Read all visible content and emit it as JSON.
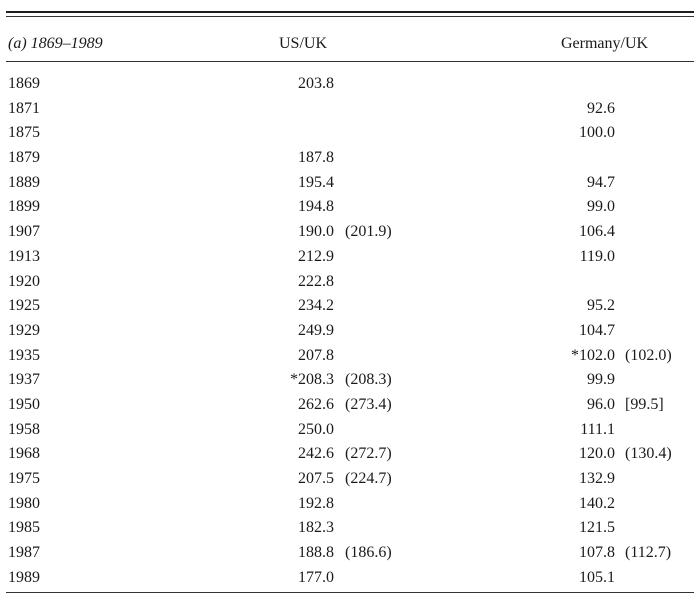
{
  "header": {
    "period": "(a) 1869–1989",
    "col_us": "US/UK",
    "col_de": "Germany/UK"
  },
  "rows": [
    {
      "year": "1869",
      "us": "203.8",
      "us_paren": "",
      "de": "",
      "de_paren": ""
    },
    {
      "year": "1871",
      "us": "",
      "us_paren": "",
      "de": "92.6",
      "de_paren": ""
    },
    {
      "year": "1875",
      "us": "",
      "us_paren": "",
      "de": "100.0",
      "de_paren": ""
    },
    {
      "year": "1879",
      "us": "187.8",
      "us_paren": "",
      "de": "",
      "de_paren": ""
    },
    {
      "year": "1889",
      "us": "195.4",
      "us_paren": "",
      "de": "94.7",
      "de_paren": ""
    },
    {
      "year": "1899",
      "us": "194.8",
      "us_paren": "",
      "de": "99.0",
      "de_paren": ""
    },
    {
      "year": "1907",
      "us": "190.0",
      "us_paren": "(201.9)",
      "de": "106.4",
      "de_paren": ""
    },
    {
      "year": "1913",
      "us": "212.9",
      "us_paren": "",
      "de": "119.0",
      "de_paren": ""
    },
    {
      "year": "1920",
      "us": "222.8",
      "us_paren": "",
      "de": "",
      "de_paren": ""
    },
    {
      "year": "1925",
      "us": "234.2",
      "us_paren": "",
      "de": "95.2",
      "de_paren": ""
    },
    {
      "year": "1929",
      "us": "249.9",
      "us_paren": "",
      "de": "104.7",
      "de_paren": ""
    },
    {
      "year": "1935",
      "us": "207.8",
      "us_paren": "",
      "de": "*102.0",
      "de_paren": "(102.0)"
    },
    {
      "year": "1937",
      "us": "*208.3",
      "us_paren": "(208.3)",
      "de": "99.9",
      "de_paren": ""
    },
    {
      "year": "1950",
      "us": "262.6",
      "us_paren": "(273.4)",
      "de": "96.0",
      "de_paren": "[99.5]"
    },
    {
      "year": "1958",
      "us": "250.0",
      "us_paren": "",
      "de": "111.1",
      "de_paren": ""
    },
    {
      "year": "1968",
      "us": "242.6",
      "us_paren": "(272.7)",
      "de": "120.0",
      "de_paren": "(130.4)"
    },
    {
      "year": "1975",
      "us": "207.5",
      "us_paren": "(224.7)",
      "de": "132.9",
      "de_paren": ""
    },
    {
      "year": "1980",
      "us": "192.8",
      "us_paren": "",
      "de": "140.2",
      "de_paren": ""
    },
    {
      "year": "1985",
      "us": "182.3",
      "us_paren": "",
      "de": "121.5",
      "de_paren": ""
    },
    {
      "year": "1987",
      "us": "188.8",
      "us_paren": "(186.6)",
      "de": "107.8",
      "de_paren": "(112.7)"
    },
    {
      "year": "1989",
      "us": "177.0",
      "us_paren": "",
      "de": "105.1",
      "de_paren": ""
    }
  ]
}
